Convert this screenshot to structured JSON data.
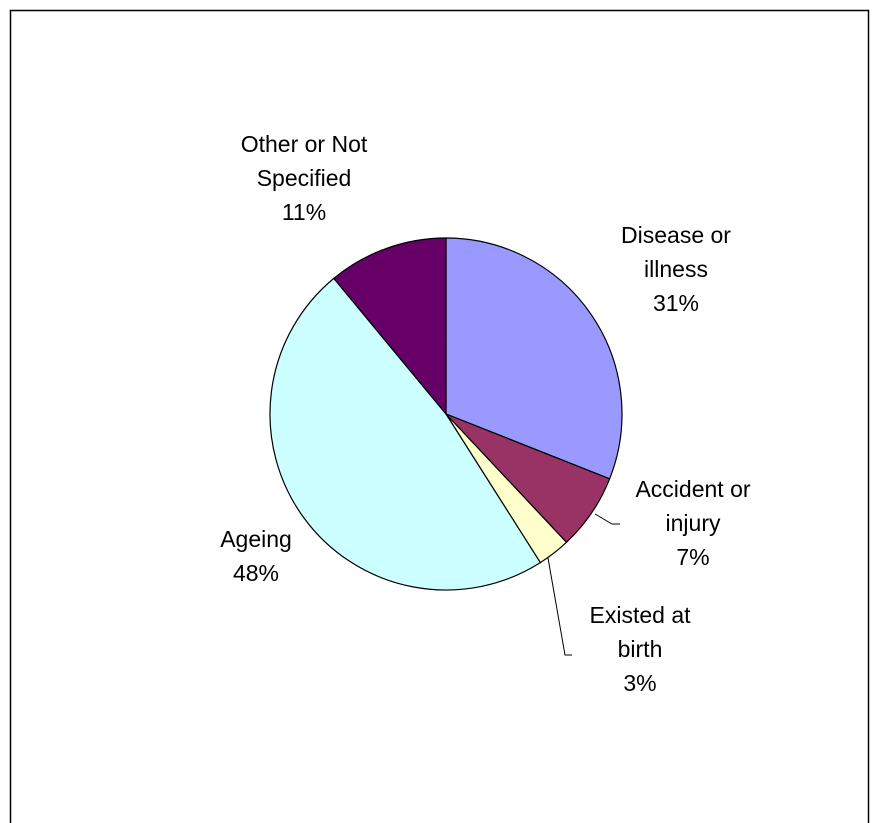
{
  "chart_data": {
    "type": "pie",
    "title": "",
    "start_angle_deg": 90,
    "direction": "clockwise",
    "slices": [
      {
        "label_lines": [
          "Disease or",
          "illness"
        ],
        "percent_text": "31%",
        "value": 31,
        "color": "#9999ff"
      },
      {
        "label_lines": [
          "Accident or",
          "injury"
        ],
        "percent_text": "7%",
        "value": 7,
        "color": "#993366"
      },
      {
        "label_lines": [
          "Existed at",
          "birth"
        ],
        "percent_text": "3%",
        "value": 3,
        "color": "#ffffcc"
      },
      {
        "label_lines": [
          "Ageing"
        ],
        "percent_text": "48%",
        "value": 48,
        "color": "#ccffff"
      },
      {
        "label_lines": [
          "Other or Not",
          "Specified"
        ],
        "percent_text": "11%",
        "value": 11,
        "color": "#660066"
      }
    ],
    "legend": "none"
  }
}
